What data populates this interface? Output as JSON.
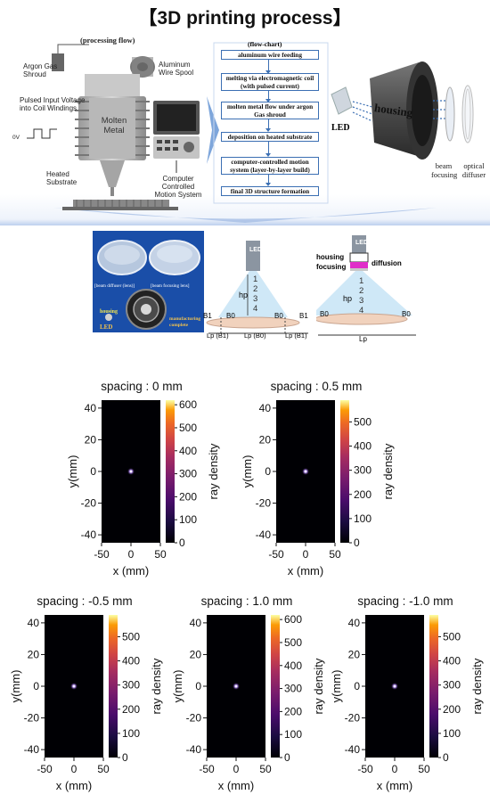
{
  "title": "【3D printing process】",
  "diagram": {
    "processing_flow_label": "(processing flow)",
    "argon_label": "Argon Gas Shroud",
    "spool_label": "Aluminum Wire Spool",
    "pulsed_label": "Pulsed Input Voltage into Coil Windings",
    "ov_label": "0V",
    "molten_label": "Molten Metal",
    "heated_label": "Heated Substrate",
    "computer_label": "Computer Controlled Motion System",
    "flowchart_label": "(flow-chart)",
    "steps": [
      "aluminum wire feeding",
      "melting via electromagnetic coil (with pulsed current)",
      "molten metal flow under argon Gas shroud",
      "deposition on heated substrate",
      "computer-controlled motion system (layer-by-layer build)",
      "final 3D structure formation"
    ],
    "led_label": "LED",
    "housing_label": "housing",
    "beam_focusing_label": "beam focusing",
    "optical_diffuser_label": "optical diffuser"
  },
  "photo": {
    "beam_diffuser_caption": "[beam diffuser (lens)]",
    "beam_focusing_caption": "[beam focusing lens]",
    "housing_caption": "housing",
    "led_caption": "LED",
    "manufacturing_caption": "manufacturing complete"
  },
  "schematic": {
    "led": "LED",
    "numbers": "1 2 3 4",
    "hp": "hp",
    "b1": "B1",
    "b0": "B0",
    "lp_b1": "Lp (B1)",
    "lp_b0": "Lp (B0)",
    "housing": "housing",
    "focusing": "focusing",
    "diffusion": "diffusion",
    "lp": "Lp"
  },
  "colors": {
    "flow_border": "#3b6fb3",
    "heatmap_bg": "#000004",
    "colormap": "inferno"
  },
  "chart_data": [
    {
      "type": "heatmap",
      "title": "spacing : 0 mm",
      "xlabel": "x (mm)",
      "ylabel": "y(mm)",
      "colorbar_label": "ray density",
      "xlim": [
        -50,
        50
      ],
      "ylim": [
        -45,
        45
      ],
      "x_ticks": [
        -50,
        0,
        50
      ],
      "y_ticks": [
        40,
        20,
        0,
        -20,
        -40
      ],
      "colorbar_range": [
        0,
        620
      ],
      "colorbar_ticks": [
        600,
        500,
        400,
        300,
        200,
        100,
        0
      ],
      "peak": {
        "x": 0,
        "y": 0
      }
    },
    {
      "type": "heatmap",
      "title": "spacing : 0.5 mm",
      "xlabel": "x (mm)",
      "ylabel": "y(mm)",
      "colorbar_label": "ray density",
      "xlim": [
        -50,
        50
      ],
      "ylim": [
        -45,
        45
      ],
      "x_ticks": [
        -50,
        0,
        50
      ],
      "y_ticks": [
        40,
        20,
        0,
        -20,
        -40
      ],
      "colorbar_range": [
        0,
        590
      ],
      "colorbar_ticks": [
        500,
        400,
        300,
        200,
        100,
        0
      ],
      "peak": {
        "x": 0,
        "y": 0
      }
    },
    {
      "type": "heatmap",
      "title": "spacing : -0.5 mm",
      "xlabel": "x (mm)",
      "ylabel": "y(mm)",
      "colorbar_label": "ray density",
      "xlim": [
        -50,
        50
      ],
      "ylim": [
        -45,
        45
      ],
      "x_ticks": [
        -50,
        0,
        50
      ],
      "y_ticks": [
        40,
        20,
        0,
        -20,
        -40
      ],
      "colorbar_range": [
        0,
        590
      ],
      "colorbar_ticks": [
        500,
        400,
        300,
        200,
        100,
        0
      ],
      "peak": {
        "x": 0,
        "y": 0
      }
    },
    {
      "type": "heatmap",
      "title": "spacing : 1.0 mm",
      "xlabel": "x (mm)",
      "ylabel": "y(mm)",
      "colorbar_label": "ray density",
      "xlim": [
        -50,
        50
      ],
      "ylim": [
        -45,
        45
      ],
      "x_ticks": [
        -50,
        0,
        50
      ],
      "y_ticks": [
        40,
        20,
        0,
        -20,
        -40
      ],
      "colorbar_range": [
        0,
        620
      ],
      "colorbar_ticks": [
        600,
        500,
        400,
        300,
        200,
        100,
        0
      ],
      "peak": {
        "x": 0,
        "y": 0
      }
    },
    {
      "type": "heatmap",
      "title": "spacing : -1.0 mm",
      "xlabel": "x (mm)",
      "ylabel": "y(mm)",
      "colorbar_label": "ray density",
      "xlim": [
        -50,
        50
      ],
      "ylim": [
        -45,
        45
      ],
      "x_ticks": [
        -50,
        0,
        50
      ],
      "y_ticks": [
        40,
        20,
        0,
        -20,
        -40
      ],
      "colorbar_range": [
        0,
        590
      ],
      "colorbar_ticks": [
        500,
        400,
        300,
        200,
        100,
        0
      ],
      "peak": {
        "x": 0,
        "y": 0
      }
    }
  ]
}
